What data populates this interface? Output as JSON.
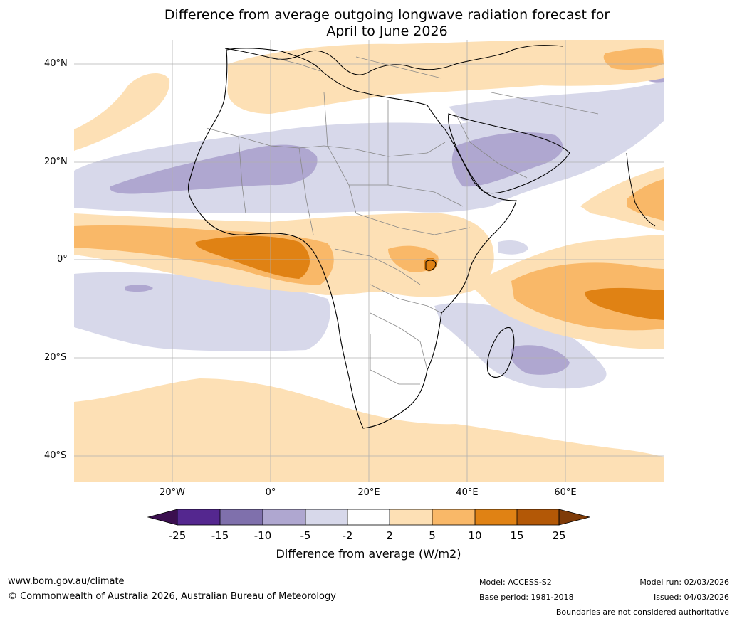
{
  "title": {
    "line1": "Difference from average outgoing longwave radiation forecast for",
    "line2": "April to June 2026"
  },
  "axes": {
    "lat_labels": [
      "40°N",
      "20°N",
      "0°",
      "20°S",
      "40°S"
    ],
    "lon_labels": [
      "20°W",
      "0°",
      "20°E",
      "40°E",
      "60°E"
    ]
  },
  "colorbar": {
    "ticks": [
      "-25",
      "-15",
      "-10",
      "-5",
      "-2",
      "2",
      "5",
      "10",
      "15",
      "25"
    ],
    "title": "Difference from average (W/m2)",
    "colors": [
      "#3b0f4f",
      "#54278f",
      "#7f70ac",
      "#afa7d0",
      "#d7d8ea",
      "#ffffff",
      "#fde0b5",
      "#f9b868",
      "#e08214",
      "#b35806",
      "#7f3b08"
    ]
  },
  "footer": {
    "website": "www.bom.gov.au/climate",
    "copyright": "© Commonwealth of Australia 2026, Australian Bureau of Meteorology",
    "model": "Model: ACCESS-S2",
    "base_period": "Base period: 1981-2018",
    "model_run": "Model run: 02/03/2026",
    "issued": "Issued: 04/03/2026",
    "disclaimer": "Boundaries are not considered authoritative"
  }
}
